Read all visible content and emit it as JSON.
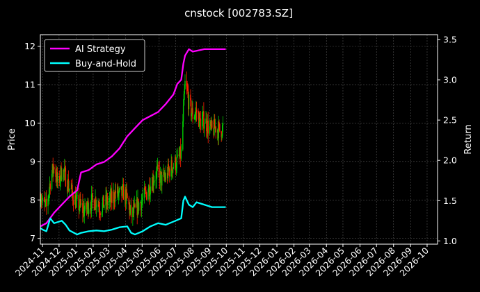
{
  "chart_data": {
    "type": "line",
    "title": "cnstock [002783.SZ]",
    "ylabel": "Price",
    "y2label": "Return",
    "ylim": [
      6.85,
      12.3
    ],
    "y2lim": [
      0.96,
      3.56
    ],
    "yticks": [
      "7",
      "8",
      "9",
      "10",
      "11",
      "12"
    ],
    "y2ticks": [
      "1.0",
      "1.5",
      "2.0",
      "2.5",
      "3.0",
      "3.5"
    ],
    "xlim": [
      "2024-10-28",
      "2026-10-20"
    ],
    "xticks": [
      "2024-11",
      "2024-12",
      "2025-01",
      "2025-02",
      "2025-03",
      "2025-04",
      "2025-05",
      "2025-06",
      "2025-07",
      "2025-08",
      "2025-09",
      "2025-10",
      "2025-11",
      "2025-12",
      "2026-01",
      "2026-02",
      "2026-03",
      "2026-04",
      "2026-05",
      "2026-06",
      "2026-07",
      "2026-08",
      "2026-09",
      "2026-10"
    ],
    "grid": true,
    "legend_position": "top-left",
    "colors": {
      "background": "#000000",
      "ai_strategy": "#ff00ff",
      "buy_and_hold": "#00ffff",
      "candle_up": "#00cc00",
      "candle_down": "#ff2200",
      "grid": "#555555",
      "axis": "#ffffff"
    },
    "price_path": [
      [
        "2024-10-28",
        8.2
      ],
      [
        "2024-11-01",
        7.9
      ],
      [
        "2024-11-08",
        7.8
      ],
      [
        "2024-11-15",
        8.5
      ],
      [
        "2024-11-22",
        8.9
      ],
      [
        "2024-11-29",
        8.4
      ],
      [
        "2024-12-06",
        8.8
      ],
      [
        "2024-12-13",
        8.6
      ],
      [
        "2024-12-20",
        8.3
      ],
      [
        "2024-12-27",
        8.1
      ],
      [
        "2025-01-03",
        7.9
      ],
      [
        "2025-01-10",
        7.8
      ],
      [
        "2025-01-17",
        7.7
      ],
      [
        "2025-01-24",
        7.9
      ],
      [
        "2025-02-07",
        8.0
      ],
      [
        "2025-02-14",
        7.8
      ],
      [
        "2025-02-21",
        7.9
      ],
      [
        "2025-03-07",
        8.0
      ],
      [
        "2025-03-14",
        8.2
      ],
      [
        "2025-03-21",
        8.1
      ],
      [
        "2025-03-28",
        8.2
      ],
      [
        "2025-04-04",
        8.0
      ],
      [
        "2025-04-11",
        7.6
      ],
      [
        "2025-04-18",
        7.7
      ],
      [
        "2025-04-25",
        7.9
      ],
      [
        "2025-05-02",
        8.0
      ],
      [
        "2025-05-09",
        8.2
      ],
      [
        "2025-05-16",
        8.4
      ],
      [
        "2025-05-23",
        8.6
      ],
      [
        "2025-05-30",
        8.7
      ],
      [
        "2025-06-06",
        8.5
      ],
      [
        "2025-06-13",
        8.6
      ],
      [
        "2025-06-20",
        8.8
      ],
      [
        "2025-06-27",
        8.9
      ],
      [
        "2025-07-04",
        9.0
      ],
      [
        "2025-07-11",
        9.2
      ],
      [
        "2025-07-15",
        10.3
      ],
      [
        "2025-07-18",
        11.0
      ],
      [
        "2025-07-22",
        10.8
      ],
      [
        "2025-07-25",
        10.5
      ],
      [
        "2025-08-01",
        10.2
      ],
      [
        "2025-08-08",
        10.3
      ],
      [
        "2025-08-15",
        10.0
      ],
      [
        "2025-08-22",
        10.1
      ],
      [
        "2025-08-29",
        9.9
      ],
      [
        "2025-09-05",
        9.8
      ],
      [
        "2025-09-12",
        9.9
      ],
      [
        "2025-09-19",
        9.8
      ],
      [
        "2025-09-26",
        9.9
      ]
    ],
    "series": [
      {
        "name": "AI Strategy",
        "x": [
          "2024-10-28",
          "2024-11-08",
          "2024-11-22",
          "2024-12-06",
          "2024-12-20",
          "2025-01-03",
          "2025-01-10",
          "2025-01-24",
          "2025-02-07",
          "2025-02-21",
          "2025-03-07",
          "2025-03-21",
          "2025-04-04",
          "2025-04-18",
          "2025-05-02",
          "2025-05-16",
          "2025-05-30",
          "2025-06-13",
          "2025-06-27",
          "2025-07-04",
          "2025-07-11",
          "2025-07-15",
          "2025-07-18",
          "2025-07-25",
          "2025-08-01",
          "2025-08-08",
          "2025-08-22",
          "2025-09-05",
          "2025-09-19",
          "2025-09-30"
        ],
        "values": [
          1.18,
          1.22,
          1.35,
          1.45,
          1.55,
          1.63,
          1.85,
          1.88,
          1.95,
          1.98,
          2.05,
          2.15,
          2.3,
          2.4,
          2.5,
          2.55,
          2.6,
          2.7,
          2.82,
          2.95,
          3.0,
          3.2,
          3.3,
          3.38,
          3.35,
          3.36,
          3.38,
          3.38,
          3.38,
          3.38
        ]
      },
      {
        "name": "Buy-and-Hold",
        "x": [
          "2024-10-28",
          "2024-11-01",
          "2024-11-08",
          "2024-11-15",
          "2024-11-22",
          "2024-12-06",
          "2024-12-13",
          "2024-12-20",
          "2025-01-03",
          "2025-01-10",
          "2025-01-24",
          "2025-02-07",
          "2025-02-21",
          "2025-03-07",
          "2025-03-21",
          "2025-04-04",
          "2025-04-11",
          "2025-04-18",
          "2025-05-02",
          "2025-05-16",
          "2025-05-30",
          "2025-06-13",
          "2025-06-27",
          "2025-07-11",
          "2025-07-15",
          "2025-07-18",
          "2025-07-25",
          "2025-08-01",
          "2025-08-08",
          "2025-08-22",
          "2025-09-05",
          "2025-09-19",
          "2025-09-30"
        ],
        "values": [
          1.16,
          1.14,
          1.12,
          1.28,
          1.22,
          1.25,
          1.2,
          1.13,
          1.08,
          1.1,
          1.12,
          1.13,
          1.12,
          1.14,
          1.17,
          1.18,
          1.1,
          1.08,
          1.12,
          1.18,
          1.22,
          1.2,
          1.24,
          1.28,
          1.5,
          1.55,
          1.45,
          1.42,
          1.48,
          1.45,
          1.42,
          1.42,
          1.42
        ]
      }
    ]
  }
}
